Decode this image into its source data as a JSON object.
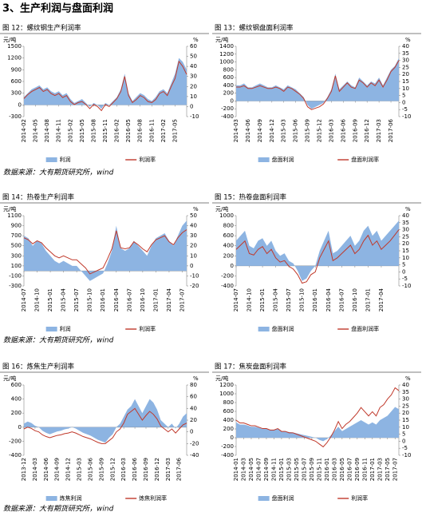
{
  "heading": "3、生产利润与盘面利润",
  "source_notes": [
    "数据来源：大有期货研究所，wind",
    "数据来源：大有期货研究所，wind",
    "数据来源：大有期货研究所，wind"
  ],
  "chart_data": [
    {
      "type": "combo",
      "title": "图 12：螺纹钢生产利润率",
      "ylabel": "元/吨",
      "y2label": "%",
      "categories": [
        "2014-02",
        null,
        null,
        "2014-05",
        null,
        null,
        "2014-08",
        null,
        null,
        "2014-11",
        null,
        null,
        "2015-02",
        null,
        null,
        "2015-05",
        null,
        null,
        "2015-08",
        null,
        null,
        "2015-11",
        null,
        null,
        "2016-02",
        null,
        null,
        "2016-05",
        null,
        null,
        "2016-08",
        null,
        null,
        "2016-11",
        null,
        null,
        "2017-02",
        null,
        null,
        "2017-05",
        null,
        null,
        null
      ],
      "ylim": [
        -300,
        1500
      ],
      "yticks": [
        -300,
        0,
        300,
        600,
        900,
        1200,
        1500
      ],
      "y2lim": [
        -10,
        60
      ],
      "y2ticks": [
        -10,
        0,
        10,
        20,
        30,
        40,
        50,
        60
      ],
      "series": [
        {
          "name": "利润",
          "style": "area",
          "color": "#8db4e2",
          "values": [
            200,
            300,
            400,
            450,
            500,
            400,
            450,
            350,
            300,
            350,
            250,
            300,
            150,
            50,
            100,
            150,
            50,
            -50,
            50,
            0,
            -100,
            50,
            0,
            100,
            200,
            400,
            800,
            300,
            100,
            200,
            300,
            250,
            150,
            100,
            200,
            350,
            400,
            300,
            550,
            800,
            1200,
            1100,
            900
          ]
        },
        {
          "name": "利润率",
          "style": "line",
          "axis": "y2",
          "color": "#c0392b",
          "values": [
            8,
            12,
            15,
            17,
            19,
            15,
            17,
            13,
            11,
            13,
            9,
            11,
            5,
            2,
            4,
            5,
            2,
            -2,
            2,
            0,
            -4,
            2,
            0,
            4,
            8,
            15,
            30,
            11,
            4,
            7,
            11,
            9,
            5,
            4,
            7,
            13,
            15,
            11,
            20,
            28,
            45,
            40,
            32
          ]
        }
      ]
    },
    {
      "type": "combo",
      "title": "图 13：螺纹钢盘面利润率",
      "ylabel": "元/吨",
      "y2label": "%",
      "categories": [
        "2014-03",
        null,
        null,
        "2014-06",
        null,
        null,
        "2014-09",
        null,
        null,
        "2014-12",
        null,
        null,
        "2015-03",
        null,
        null,
        "2015-06",
        null,
        null,
        "2015-09",
        null,
        null,
        "2015-12",
        null,
        null,
        "2016-03",
        null,
        null,
        "2016-06",
        null,
        null,
        "2016-09",
        null,
        null,
        "2016-12",
        null,
        null,
        "2017-03",
        null,
        null,
        "2017-06",
        null,
        null
      ],
      "ylim": [
        -400,
        1400
      ],
      "yticks": [
        -400,
        -200,
        0,
        200,
        400,
        600,
        800,
        1000,
        1200,
        1400
      ],
      "y2lim": [
        -10,
        40
      ],
      "y2ticks": [
        -10,
        -5,
        0,
        5,
        10,
        15,
        20,
        25,
        30,
        35,
        40
      ],
      "series": [
        {
          "name": "盘面利润",
          "style": "area",
          "color": "#8db4e2",
          "values": [
            400,
            400,
            450,
            350,
            350,
            400,
            450,
            400,
            350,
            350,
            400,
            350,
            300,
            400,
            350,
            300,
            200,
            100,
            -100,
            -200,
            -150,
            -100,
            -50,
            100,
            300,
            700,
            300,
            400,
            500,
            400,
            350,
            600,
            500,
            400,
            500,
            450,
            600,
            400,
            600,
            800,
            900,
            1100
          ]
        },
        {
          "name": "盘面利润率",
          "style": "line",
          "axis": "y2",
          "color": "#c0392b",
          "values": [
            11,
            11,
            12,
            10,
            10,
            11,
            12,
            11,
            10,
            10,
            11,
            10,
            8,
            11,
            10,
            8,
            6,
            3,
            -3,
            -5,
            -4,
            -3,
            -1,
            3,
            8,
            19,
            8,
            11,
            14,
            11,
            10,
            16,
            14,
            11,
            14,
            12,
            16,
            11,
            16,
            22,
            25,
            30
          ]
        }
      ]
    },
    {
      "type": "combo",
      "title": "图 14：热卷生产利润率",
      "ylabel": "元/吨",
      "y2label": "%",
      "categories": [
        "2014-07",
        null,
        null,
        "2014-10",
        null,
        null,
        "2015-01",
        null,
        null,
        "2015-04",
        null,
        null,
        "2015-07",
        null,
        null,
        "2015-10",
        null,
        null,
        "2016-01",
        null,
        null,
        "2016-04",
        null,
        null,
        "2016-07",
        null,
        null,
        "2016-10",
        null,
        null,
        "2017-01",
        null,
        null,
        "2017-04",
        null,
        null,
        "2017-07",
        null
      ],
      "ylim": [
        -300,
        1100
      ],
      "yticks": [
        -300,
        -100,
        100,
        300,
        500,
        700,
        900,
        1100
      ],
      "y2lim": [
        -20,
        50
      ],
      "y2ticks": [
        -20,
        -10,
        0,
        10,
        20,
        30,
        40,
        50
      ],
      "series": [
        {
          "name": "利润",
          "style": "area",
          "color": "#8db4e2",
          "values": [
            700,
            650,
            500,
            600,
            550,
            400,
            300,
            200,
            150,
            200,
            150,
            100,
            100,
            0,
            -100,
            -200,
            -150,
            -100,
            -50,
            150,
            400,
            900,
            450,
            400,
            450,
            600,
            500,
            400,
            300,
            500,
            650,
            700,
            750,
            600,
            500,
            700,
            900,
            1000
          ]
        },
        {
          "name": "利润率",
          "style": "line",
          "axis": "y2",
          "color": "#c0392b",
          "values": [
            28,
            26,
            22,
            25,
            23,
            18,
            14,
            10,
            8,
            10,
            8,
            6,
            6,
            2,
            -2,
            -8,
            -6,
            -4,
            -2,
            7,
            17,
            35,
            18,
            17,
            18,
            24,
            21,
            17,
            14,
            21,
            26,
            28,
            30,
            24,
            21,
            28,
            33,
            36
          ]
        }
      ]
    },
    {
      "type": "combo",
      "title": "图 15：热卷盘面利润率",
      "ylabel": "元/吨",
      "y2label": "%",
      "categories": [
        "2014-07",
        null,
        null,
        "2014-10",
        null,
        null,
        "2015-01",
        null,
        null,
        "2015-04",
        null,
        null,
        "2015-07",
        null,
        null,
        "2015-10",
        null,
        null,
        "2016-01",
        null,
        null,
        "2016-04",
        null,
        null,
        "2016-07",
        null,
        null,
        "2016-10",
        null,
        null,
        "2017-01",
        null,
        null,
        "2017-04",
        null,
        null,
        null,
        null
      ],
      "ylim": [
        -400,
        1000
      ],
      "yticks": [
        -400,
        -200,
        0,
        200,
        400,
        600,
        800,
        1000
      ],
      "y2lim": [
        -10,
        40
      ],
      "y2ticks": [
        -10,
        -5,
        0,
        5,
        10,
        15,
        20,
        25,
        30,
        35,
        40
      ],
      "series": [
        {
          "name": "盘面利润",
          "style": "area",
          "color": "#8db4e2",
          "values": [
            500,
            600,
            700,
            400,
            350,
            500,
            550,
            400,
            500,
            300,
            200,
            250,
            100,
            50,
            -100,
            -300,
            -250,
            -100,
            0,
            300,
            500,
            700,
            250,
            300,
            400,
            500,
            600,
            400,
            500,
            700,
            800,
            600,
            700,
            500,
            600,
            700,
            800,
            900
          ]
        },
        {
          "name": "盘面利润率",
          "style": "line",
          "axis": "y2",
          "color": "#c0392b",
          "values": [
            16,
            19,
            22,
            13,
            12,
            16,
            18,
            13,
            16,
            10,
            7,
            8,
            4,
            2,
            -2,
            -8,
            -7,
            -2,
            0,
            10,
            16,
            22,
            8,
            10,
            13,
            16,
            19,
            13,
            16,
            22,
            26,
            19,
            22,
            16,
            19,
            22,
            26,
            30
          ]
        }
      ]
    },
    {
      "type": "combo",
      "title": "图 16：炼焦生产利润率",
      "ylabel": "元/吨",
      "y2label": "%",
      "categories": [
        "2013-12",
        null,
        null,
        "2014-03",
        null,
        null,
        "2014-06",
        null,
        null,
        "2014-09",
        null,
        null,
        "2014-12",
        null,
        null,
        "2015-03",
        null,
        null,
        "2015-06",
        null,
        null,
        "2015-09",
        null,
        null,
        "2015-12",
        null,
        null,
        "2016-03",
        null,
        null,
        "2016-06",
        null,
        null,
        "2016-09",
        null,
        null,
        "2016-12",
        null,
        null,
        "2017-03",
        null,
        null,
        "2017-06",
        null,
        null
      ],
      "ylim": [
        -400,
        600
      ],
      "yticks": [
        -400,
        -200,
        0,
        200,
        400,
        600
      ],
      "y2lim": [
        -40,
        80
      ],
      "y2ticks": [
        -40,
        -20,
        0,
        20,
        40,
        60,
        80
      ],
      "series": [
        {
          "name": "炼焦利润",
          "style": "area",
          "color": "#8db4e2",
          "values": [
            50,
            80,
            60,
            20,
            0,
            -50,
            -80,
            -100,
            -80,
            -60,
            -50,
            -30,
            -20,
            0,
            -20,
            -50,
            -80,
            -100,
            -120,
            -150,
            -180,
            -200,
            -220,
            -150,
            -100,
            0,
            50,
            150,
            250,
            300,
            400,
            300,
            200,
            300,
            400,
            350,
            250,
            100,
            50,
            0,
            50,
            -20,
            50,
            150,
            200
          ]
        },
        {
          "name": "炼焦利润率",
          "style": "line",
          "axis": "y2",
          "color": "#c0392b",
          "values": [
            5,
            8,
            6,
            2,
            0,
            -5,
            -8,
            -10,
            -8,
            -6,
            -5,
            -3,
            -2,
            0,
            -2,
            -5,
            -8,
            -10,
            -12,
            -15,
            -18,
            -20,
            -20,
            -15,
            -10,
            0,
            5,
            15,
            30,
            35,
            40,
            30,
            20,
            28,
            35,
            30,
            22,
            10,
            5,
            0,
            5,
            -2,
            5,
            12,
            15
          ]
        }
      ]
    },
    {
      "type": "combo",
      "title": "图 17：焦炭盘面利润率",
      "ylabel": "元/吨",
      "y2label": "%",
      "categories": [
        "2014-01",
        null,
        "2014-03",
        null,
        "2014-05",
        null,
        "2014-07",
        null,
        "2014-09",
        null,
        "2014-11",
        null,
        "2015-01",
        null,
        "2015-03",
        null,
        "2015-05",
        null,
        "2015-07",
        null,
        "2015-09",
        null,
        "2015-11",
        null,
        "2016-01",
        null,
        "2016-03",
        null,
        "2016-05",
        null,
        "2016-07",
        null,
        "2016-09",
        null,
        "2016-11",
        null,
        "2017-01",
        null,
        "2017-03",
        null,
        "2017-05",
        null,
        "2017-07",
        null
      ],
      "ylim": [
        -400,
        1200
      ],
      "yticks": [
        -400,
        -200,
        0,
        200,
        400,
        600,
        800,
        1000,
        1200
      ],
      "y2lim": [
        -10,
        40
      ],
      "y2ticks": [
        -10,
        -5,
        0,
        5,
        10,
        15,
        20,
        25,
        30,
        35,
        40
      ],
      "series": [
        {
          "name": "盘面利润",
          "style": "area",
          "color": "#8db4e2",
          "values": [
            350,
            300,
            300,
            280,
            250,
            250,
            230,
            200,
            200,
            180,
            180,
            200,
            150,
            150,
            130,
            120,
            100,
            80,
            60,
            40,
            20,
            0,
            -50,
            -80,
            -30,
            50,
            150,
            250,
            150,
            200,
            250,
            300,
            350,
            400,
            350,
            300,
            350,
            300,
            400,
            450,
            500,
            600,
            700,
            650
          ]
        },
        {
          "name": "利润率",
          "style": "line",
          "axis": "y2",
          "color": "#c0392b",
          "values": [
            15,
            13,
            13,
            12,
            11,
            11,
            10,
            9,
            9,
            8,
            8,
            9,
            7,
            7,
            6,
            6,
            5,
            4,
            3,
            2,
            1,
            0,
            -2,
            -4,
            -1,
            3,
            8,
            14,
            9,
            12,
            14,
            17,
            20,
            24,
            21,
            18,
            21,
            18,
            24,
            26,
            30,
            33,
            38,
            36
          ]
        }
      ]
    }
  ]
}
